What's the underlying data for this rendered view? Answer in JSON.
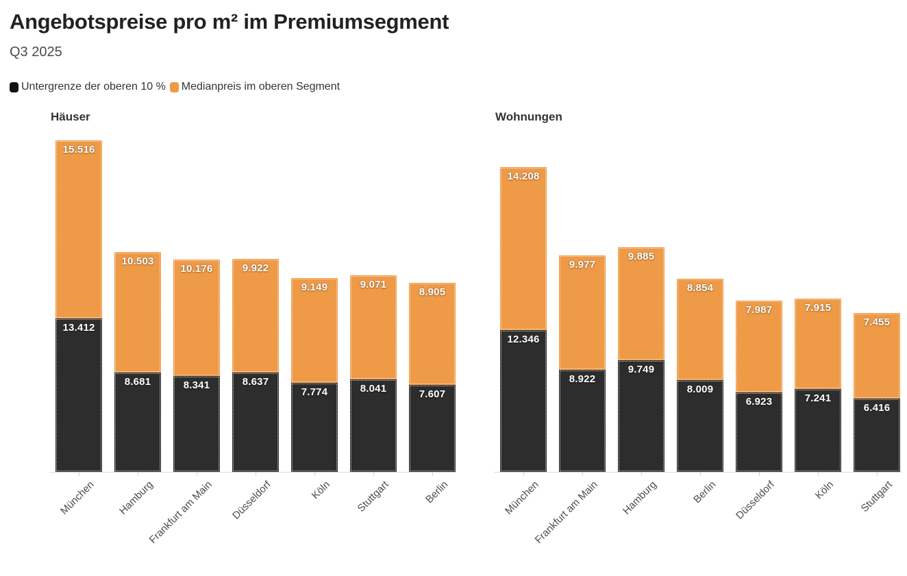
{
  "header": {
    "title": "Angebotspreise pro m² im Premiumsegment",
    "subtitle": "Q3 2025"
  },
  "legend": {
    "items": [
      {
        "label": "Untergrenze der oberen 10 %",
        "color": "#111111"
      },
      {
        "label": "Medianpreis im oberen Segment",
        "color": "#ef9a47"
      }
    ]
  },
  "colors": {
    "lower_segment": "#2d2d2d",
    "median_segment": "#ef9a47",
    "axis_line": "#dadada",
    "tick": "#cfcfcf",
    "bar_value_label": "#ffffff",
    "axis_label": "#4d4d4d",
    "title": "#222222",
    "subtitle": "#4a4a4a"
  },
  "chart_data": [
    {
      "type": "bar",
      "variant": "stacked-column",
      "title": "Häuser",
      "categories": [
        "München",
        "Hamburg",
        "Frankfurt am Main",
        "Düsseldorf",
        "Köln",
        "Stuttgart",
        "Berlin"
      ],
      "series": [
        {
          "name": "Untergrenze der oberen 10 %",
          "values": [
            13412,
            8681,
            8341,
            8637,
            7774,
            8041,
            7607
          ],
          "labels": [
            "13.412",
            "8.681",
            "8.341",
            "8.637",
            "7.774",
            "8.041",
            "7.607"
          ]
        },
        {
          "name": "Medianpreis im oberen Segment",
          "values": [
            15516,
            10503,
            10176,
            9922,
            9149,
            9071,
            8905
          ],
          "labels": [
            "15.516",
            "10.503",
            "10.176",
            "9.922",
            "9.149",
            "9.071",
            "8.905"
          ]
        }
      ],
      "stack_order": "lower segment at bottom, median segment on top",
      "value_labels": "inside top of each segment, white bold, German thousands format",
      "grid": false,
      "y_axis": "hidden",
      "unit": "EUR pro m²"
    },
    {
      "type": "bar",
      "variant": "stacked-column",
      "title": "Wohnungen",
      "categories": [
        "München",
        "Frankfurt am Main",
        "Hamburg",
        "Berlin",
        "Düsseldorf",
        "Köln",
        "Stuttgart"
      ],
      "series": [
        {
          "name": "Untergrenze der oberen 10 %",
          "values": [
            12346,
            8922,
            9749,
            8009,
            6923,
            7241,
            6416
          ],
          "labels": [
            "12.346",
            "8.922",
            "9.749",
            "8.009",
            "6.923",
            "7.241",
            "6.416"
          ]
        },
        {
          "name": "Medianpreis im oberen Segment",
          "values": [
            14208,
            9977,
            9885,
            8854,
            7987,
            7915,
            7455
          ],
          "labels": [
            "14.208",
            "9.977",
            "9.885",
            "8.854",
            "7.987",
            "7.915",
            "7.455"
          ]
        }
      ],
      "stack_order": "lower segment at bottom, median segment on top",
      "value_labels": "inside top of each segment, white bold, German thousands format",
      "grid": false,
      "y_axis": "hidden",
      "unit": "EUR pro m²"
    }
  ]
}
